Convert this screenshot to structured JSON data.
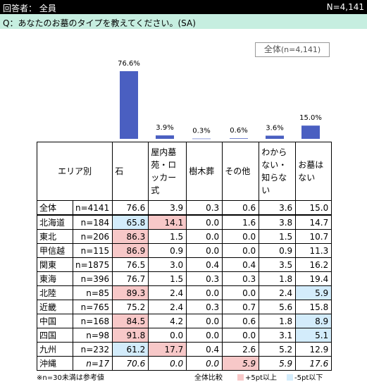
{
  "header": {
    "respondent_label": "回答者： 全員",
    "n_total": "N=4,141"
  },
  "question": "Q：あなたのお墓のタイプを教えてください。(SA)",
  "legend_total": {
    "prefix": "全体",
    "n": "(n=4,141)"
  },
  "colors": {
    "bar": "#4a5fc1",
    "above": "#f7c8c8",
    "below": "#d3ecfb"
  },
  "chart_data": {
    "type": "bar",
    "categories": [
      "石",
      "屋内墓苑・ロッカー式",
      "樹木葬",
      "その他",
      "わからない・知らない",
      "お墓はない"
    ],
    "values": [
      76.6,
      3.9,
      0.3,
      0.6,
      3.6,
      15.0
    ],
    "value_labels": [
      "76.6%",
      "3.9%",
      "0.3%",
      "0.6%",
      "3.6%",
      "15.0%"
    ],
    "ylim": [
      0,
      76.6
    ]
  },
  "table": {
    "area_header": "エリア別",
    "columns": [
      "石",
      "屋内墓苑・ロッカー式",
      "樹木葬",
      "その他",
      "わからない・知らない",
      "お墓はない"
    ],
    "rows": [
      {
        "area": "全体",
        "n": "n=4141",
        "values": [
          "76.6",
          "3.9",
          "0.3",
          "0.6",
          "3.6",
          "15.0"
        ],
        "marks": [
          "",
          "",
          "",
          "",
          "",
          ""
        ]
      },
      {
        "area": "北海道",
        "n": "n=184",
        "values": [
          "65.8",
          "14.1",
          "0.0",
          "1.6",
          "3.8",
          "14.7"
        ],
        "marks": [
          "lo",
          "hi",
          "",
          "",
          "",
          ""
        ]
      },
      {
        "area": "東北",
        "n": "n=206",
        "values": [
          "86.3",
          "1.5",
          "0.0",
          "0.0",
          "1.5",
          "10.7"
        ],
        "marks": [
          "hi",
          "",
          "",
          "",
          "",
          ""
        ]
      },
      {
        "area": "甲信越",
        "n": "n=115",
        "values": [
          "86.9",
          "0.9",
          "0.0",
          "0.0",
          "0.9",
          "11.3"
        ],
        "marks": [
          "hi",
          "",
          "",
          "",
          "",
          ""
        ]
      },
      {
        "area": "関東",
        "n": "n=1875",
        "values": [
          "76.5",
          "3.0",
          "0.4",
          "0.4",
          "3.5",
          "16.2"
        ],
        "marks": [
          "",
          "",
          "",
          "",
          "",
          ""
        ]
      },
      {
        "area": "東海",
        "n": "n=396",
        "values": [
          "76.7",
          "1.5",
          "0.3",
          "0.3",
          "1.8",
          "19.4"
        ],
        "marks": [
          "",
          "",
          "",
          "",
          "",
          ""
        ]
      },
      {
        "area": "北陸",
        "n": "n=85",
        "values": [
          "89.3",
          "2.4",
          "0.0",
          "0.0",
          "2.4",
          "5.9"
        ],
        "marks": [
          "hi",
          "",
          "",
          "",
          "",
          "lo"
        ]
      },
      {
        "area": "近畿",
        "n": "n=765",
        "values": [
          "75.2",
          "2.4",
          "0.3",
          "0.7",
          "5.6",
          "15.8"
        ],
        "marks": [
          "",
          "",
          "",
          "",
          "",
          ""
        ]
      },
      {
        "area": "中国",
        "n": "n=168",
        "values": [
          "84.5",
          "4.2",
          "0.0",
          "0.6",
          "1.8",
          "8.9"
        ],
        "marks": [
          "hi",
          "",
          "",
          "",
          "",
          "lo"
        ]
      },
      {
        "area": "四国",
        "n": "n=98",
        "values": [
          "91.8",
          "0.0",
          "0.0",
          "0.0",
          "3.1",
          "5.1"
        ],
        "marks": [
          "hi",
          "",
          "",
          "",
          "",
          "lo"
        ]
      },
      {
        "area": "九州",
        "n": "n=232",
        "values": [
          "61.2",
          "17.7",
          "0.4",
          "2.6",
          "5.2",
          "12.9"
        ],
        "marks": [
          "lo",
          "hi",
          "",
          "",
          "",
          ""
        ]
      },
      {
        "area": "沖縄",
        "n": "n=17",
        "values": [
          "70.6",
          "0.0",
          "0.0",
          "5.9",
          "5.9",
          "17.6"
        ],
        "marks": [
          "",
          "",
          "",
          "hi",
          "",
          ""
        ],
        "italic": true
      }
    ]
  },
  "footer": {
    "note": "※n=30未満は参考値",
    "compare": "全体比較",
    "above_label": "+5pt以上",
    "below_label": "-5pt以下"
  }
}
